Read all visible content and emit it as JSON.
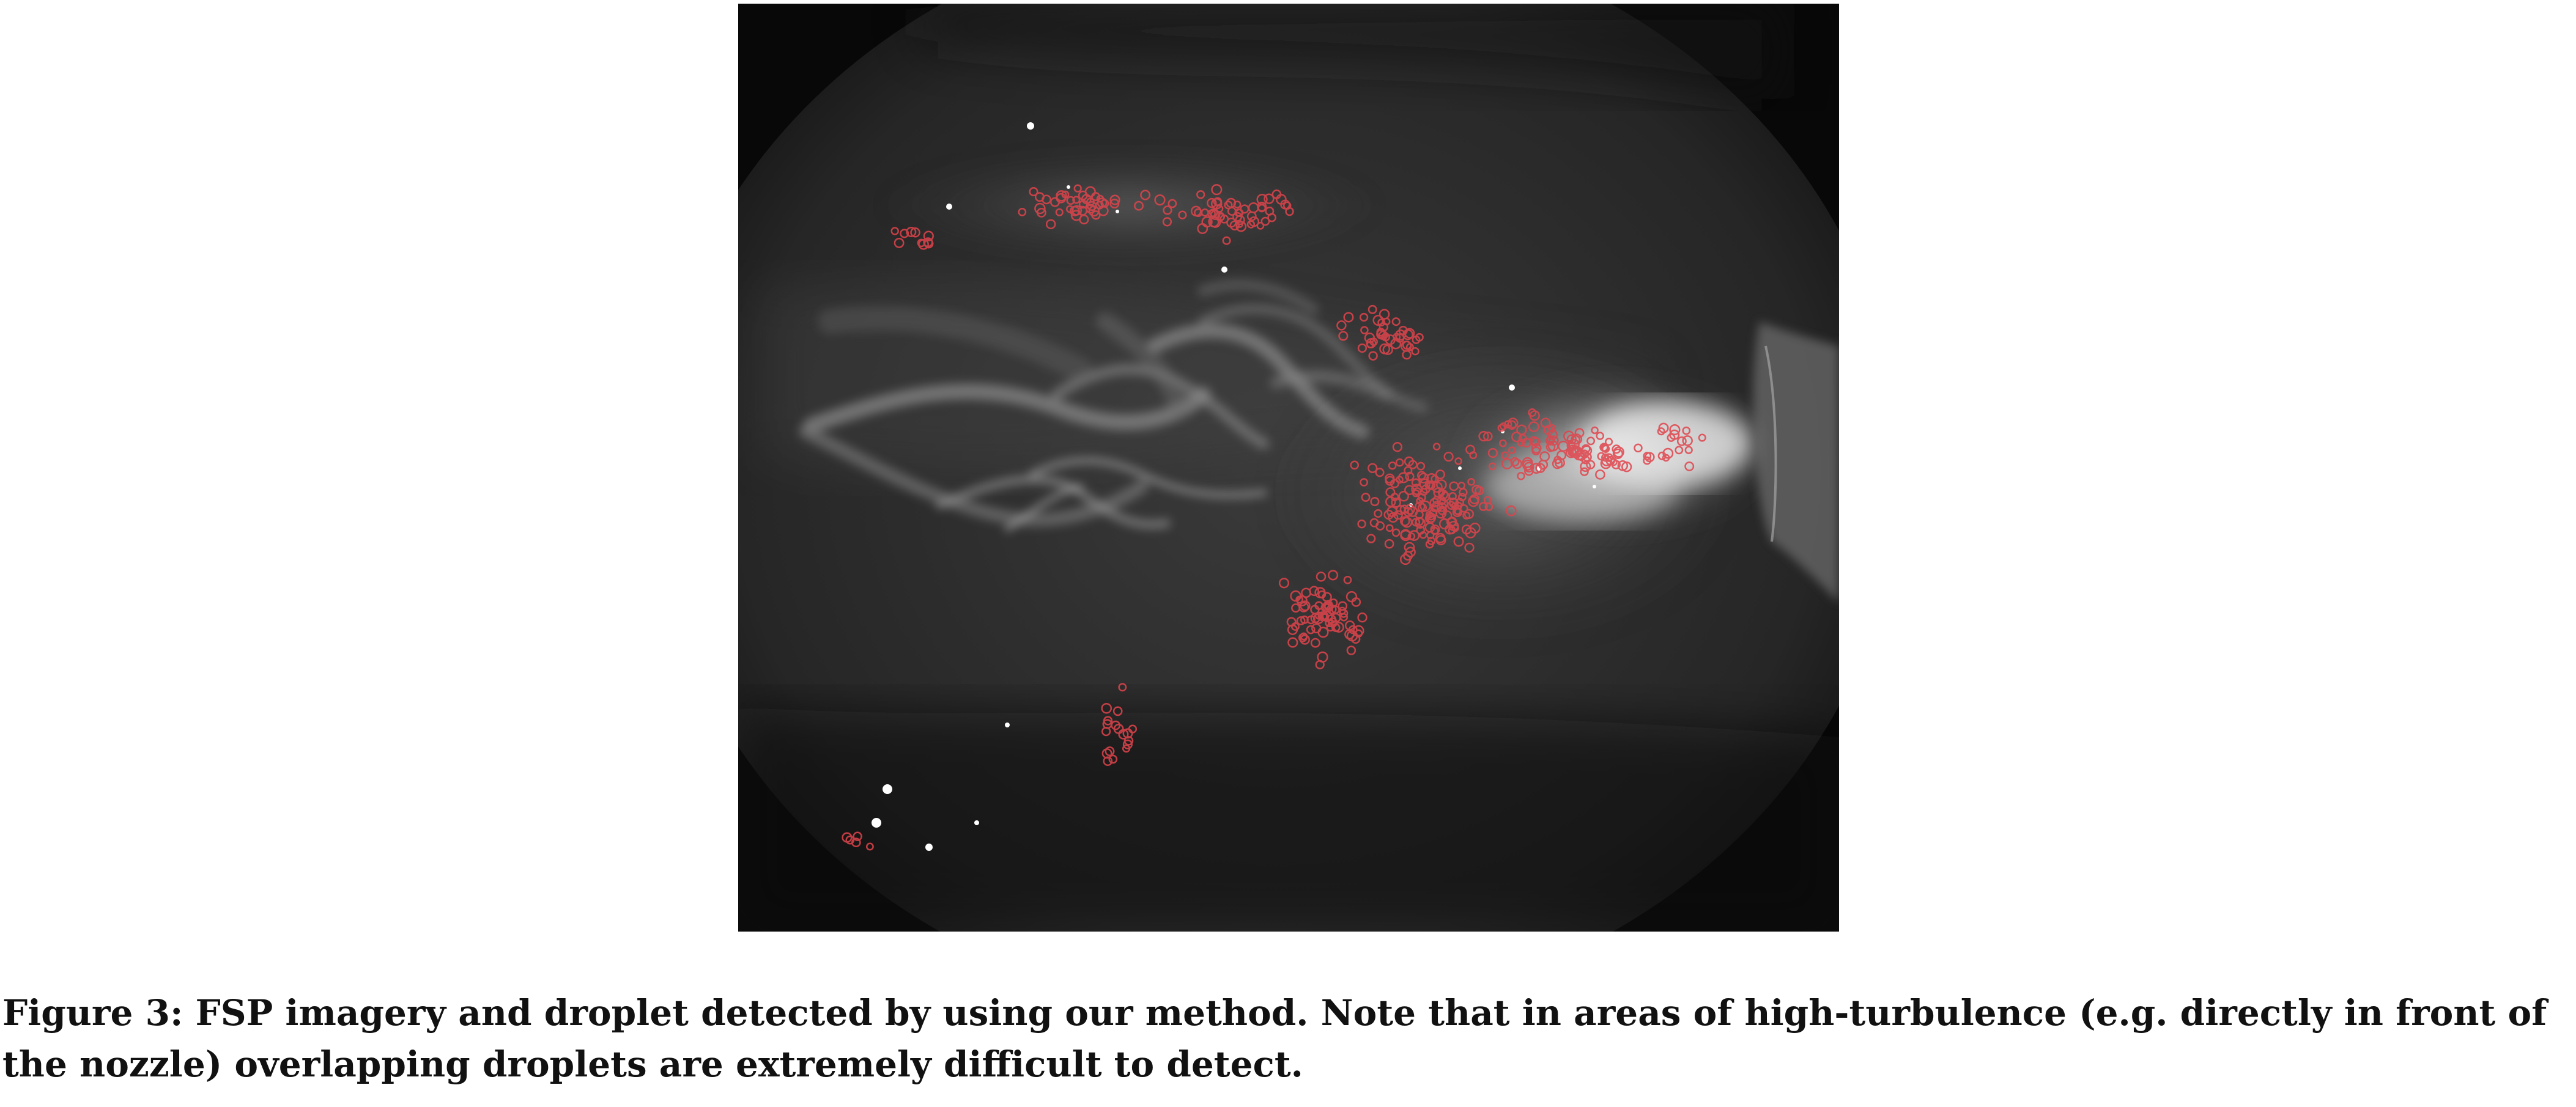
{
  "figure": {
    "image_description": "FSP imagery",
    "caption": "Figure 3: FSP imagery and droplet detected by using our method. Note that in areas of high-turbulence (e.g. directly in front of the nozzle) overlapping droplets are extremely difficult to detect.",
    "colors": {
      "background": "#0b0b0b",
      "spray": "#bdbdbd",
      "detection_marker": "#e0444c"
    }
  }
}
